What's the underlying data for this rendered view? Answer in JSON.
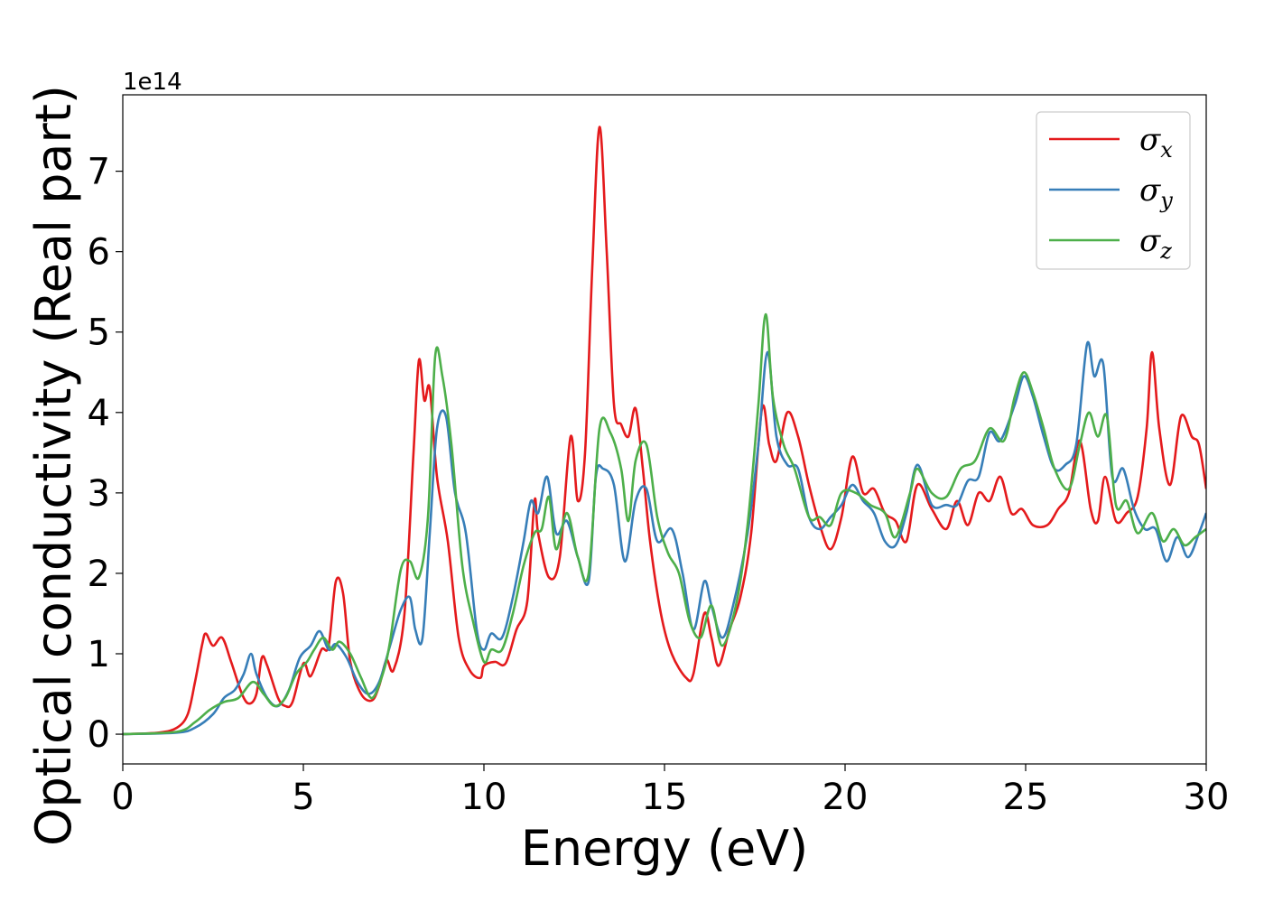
{
  "chart_data": {
    "type": "line",
    "title": "",
    "xlabel": "Energy (eV)",
    "ylabel": "Optical conductivity (Real part)",
    "y_offset_label": "1e14",
    "xlim": [
      0,
      30
    ],
    "ylim": [
      -0.37,
      7.95
    ],
    "xticks": [
      0,
      5,
      10,
      15,
      20,
      25,
      30
    ],
    "yticks": [
      0,
      1,
      2,
      3,
      4,
      5,
      6,
      7
    ],
    "grid": false,
    "legend_position": "top-right",
    "series": [
      {
        "name_symbol": "σ",
        "name_subscript": "x",
        "color": "#e41a1c",
        "points": [
          [
            0,
            0
          ],
          [
            1,
            0.02
          ],
          [
            1.5,
            0.08
          ],
          [
            1.8,
            0.25
          ],
          [
            2.0,
            0.65
          ],
          [
            2.2,
            1.12
          ],
          [
            2.3,
            1.25
          ],
          [
            2.5,
            1.1
          ],
          [
            2.75,
            1.2
          ],
          [
            3.0,
            0.9
          ],
          [
            3.3,
            0.5
          ],
          [
            3.5,
            0.38
          ],
          [
            3.7,
            0.5
          ],
          [
            3.85,
            0.95
          ],
          [
            4.0,
            0.85
          ],
          [
            4.3,
            0.45
          ],
          [
            4.5,
            0.35
          ],
          [
            4.7,
            0.4
          ],
          [
            5.0,
            0.88
          ],
          [
            5.2,
            0.72
          ],
          [
            5.5,
            1.05
          ],
          [
            5.7,
            1.1
          ],
          [
            5.9,
            1.9
          ],
          [
            6.1,
            1.75
          ],
          [
            6.3,
            0.9
          ],
          [
            6.6,
            0.5
          ],
          [
            6.9,
            0.42
          ],
          [
            7.1,
            0.6
          ],
          [
            7.3,
            0.92
          ],
          [
            7.5,
            0.8
          ],
          [
            7.8,
            1.5
          ],
          [
            8.05,
            3.5
          ],
          [
            8.2,
            4.65
          ],
          [
            8.35,
            4.15
          ],
          [
            8.5,
            4.3
          ],
          [
            8.7,
            3.2
          ],
          [
            9.0,
            2.4
          ],
          [
            9.3,
            1.2
          ],
          [
            9.6,
            0.8
          ],
          [
            9.9,
            0.7
          ],
          [
            10.0,
            0.85
          ],
          [
            10.3,
            0.9
          ],
          [
            10.6,
            0.88
          ],
          [
            10.9,
            1.3
          ],
          [
            11.2,
            1.65
          ],
          [
            11.4,
            2.9
          ],
          [
            11.5,
            2.5
          ],
          [
            11.8,
            1.95
          ],
          [
            12.1,
            2.2
          ],
          [
            12.4,
            3.7
          ],
          [
            12.6,
            2.9
          ],
          [
            12.8,
            3.5
          ],
          [
            13.0,
            5.8
          ],
          [
            13.2,
            7.55
          ],
          [
            13.4,
            6.0
          ],
          [
            13.6,
            4.1
          ],
          [
            13.8,
            3.85
          ],
          [
            14.0,
            3.7
          ],
          [
            14.2,
            4.05
          ],
          [
            14.4,
            3.3
          ],
          [
            14.6,
            2.4
          ],
          [
            14.9,
            1.5
          ],
          [
            15.2,
            1.0
          ],
          [
            15.6,
            0.7
          ],
          [
            15.8,
            0.75
          ],
          [
            16.1,
            1.5
          ],
          [
            16.3,
            1.2
          ],
          [
            16.5,
            0.85
          ],
          [
            16.8,
            1.3
          ],
          [
            17.1,
            1.7
          ],
          [
            17.4,
            2.5
          ],
          [
            17.7,
            4.05
          ],
          [
            17.9,
            3.6
          ],
          [
            18.1,
            3.4
          ],
          [
            18.4,
            4.0
          ],
          [
            18.7,
            3.7
          ],
          [
            19.0,
            3.1
          ],
          [
            19.3,
            2.6
          ],
          [
            19.6,
            2.3
          ],
          [
            19.9,
            2.7
          ],
          [
            20.2,
            3.45
          ],
          [
            20.5,
            3.0
          ],
          [
            20.8,
            3.05
          ],
          [
            21.1,
            2.75
          ],
          [
            21.4,
            2.65
          ],
          [
            21.7,
            2.4
          ],
          [
            22.0,
            3.1
          ],
          [
            22.4,
            2.8
          ],
          [
            22.8,
            2.55
          ],
          [
            23.1,
            2.9
          ],
          [
            23.4,
            2.6
          ],
          [
            23.7,
            3.0
          ],
          [
            24.0,
            2.9
          ],
          [
            24.3,
            3.2
          ],
          [
            24.6,
            2.75
          ],
          [
            24.9,
            2.8
          ],
          [
            25.2,
            2.6
          ],
          [
            25.6,
            2.6
          ],
          [
            25.9,
            2.8
          ],
          [
            26.2,
            3.0
          ],
          [
            26.5,
            3.65
          ],
          [
            26.8,
            2.8
          ],
          [
            27.0,
            2.65
          ],
          [
            27.2,
            3.2
          ],
          [
            27.5,
            2.65
          ],
          [
            27.8,
            2.75
          ],
          [
            28.1,
            2.95
          ],
          [
            28.35,
            3.8
          ],
          [
            28.5,
            4.75
          ],
          [
            28.7,
            3.8
          ],
          [
            29.0,
            3.1
          ],
          [
            29.3,
            3.95
          ],
          [
            29.6,
            3.7
          ],
          [
            29.8,
            3.6
          ],
          [
            30.0,
            3.05
          ]
        ]
      },
      {
        "name_symbol": "σ",
        "name_subscript": "y",
        "color": "#377eb8",
        "points": [
          [
            0,
            0
          ],
          [
            1.5,
            0.02
          ],
          [
            2.0,
            0.08
          ],
          [
            2.5,
            0.25
          ],
          [
            2.8,
            0.45
          ],
          [
            3.1,
            0.55
          ],
          [
            3.35,
            0.75
          ],
          [
            3.55,
            1.0
          ],
          [
            3.7,
            0.75
          ],
          [
            4.0,
            0.45
          ],
          [
            4.3,
            0.35
          ],
          [
            4.6,
            0.55
          ],
          [
            4.9,
            0.95
          ],
          [
            5.2,
            1.1
          ],
          [
            5.45,
            1.28
          ],
          [
            5.7,
            1.05
          ],
          [
            5.9,
            1.12
          ],
          [
            6.2,
            0.95
          ],
          [
            6.5,
            0.65
          ],
          [
            6.8,
            0.5
          ],
          [
            7.1,
            0.65
          ],
          [
            7.4,
            1.1
          ],
          [
            7.7,
            1.55
          ],
          [
            7.95,
            1.7
          ],
          [
            8.1,
            1.3
          ],
          [
            8.3,
            1.2
          ],
          [
            8.5,
            2.5
          ],
          [
            8.7,
            3.8
          ],
          [
            8.95,
            3.95
          ],
          [
            9.2,
            3.0
          ],
          [
            9.5,
            2.5
          ],
          [
            9.8,
            1.3
          ],
          [
            10.0,
            1.05
          ],
          [
            10.2,
            1.25
          ],
          [
            10.5,
            1.2
          ],
          [
            10.8,
            1.7
          ],
          [
            11.1,
            2.4
          ],
          [
            11.3,
            2.9
          ],
          [
            11.5,
            2.75
          ],
          [
            11.75,
            3.2
          ],
          [
            12.0,
            2.5
          ],
          [
            12.3,
            2.65
          ],
          [
            12.6,
            2.2
          ],
          [
            12.9,
            1.9
          ],
          [
            13.1,
            3.2
          ],
          [
            13.3,
            3.3
          ],
          [
            13.6,
            3.1
          ],
          [
            13.9,
            2.15
          ],
          [
            14.2,
            2.9
          ],
          [
            14.5,
            3.05
          ],
          [
            14.8,
            2.4
          ],
          [
            15.2,
            2.55
          ],
          [
            15.5,
            2.0
          ],
          [
            15.8,
            1.3
          ],
          [
            16.1,
            1.9
          ],
          [
            16.3,
            1.6
          ],
          [
            16.6,
            1.2
          ],
          [
            16.9,
            1.6
          ],
          [
            17.3,
            2.5
          ],
          [
            17.6,
            3.6
          ],
          [
            17.85,
            4.75
          ],
          [
            18.1,
            3.7
          ],
          [
            18.4,
            3.35
          ],
          [
            18.7,
            3.3
          ],
          [
            19.0,
            2.7
          ],
          [
            19.3,
            2.55
          ],
          [
            19.6,
            2.7
          ],
          [
            19.9,
            2.85
          ],
          [
            20.2,
            3.1
          ],
          [
            20.5,
            2.9
          ],
          [
            20.8,
            2.75
          ],
          [
            21.1,
            2.4
          ],
          [
            21.4,
            2.35
          ],
          [
            21.7,
            2.75
          ],
          [
            22.0,
            3.35
          ],
          [
            22.4,
            2.85
          ],
          [
            22.8,
            2.85
          ],
          [
            23.1,
            2.85
          ],
          [
            23.4,
            3.15
          ],
          [
            23.7,
            3.2
          ],
          [
            24.0,
            3.75
          ],
          [
            24.3,
            3.65
          ],
          [
            24.7,
            4.1
          ],
          [
            24.95,
            4.45
          ],
          [
            25.2,
            4.2
          ],
          [
            25.5,
            3.7
          ],
          [
            25.8,
            3.3
          ],
          [
            26.1,
            3.35
          ],
          [
            26.4,
            3.6
          ],
          [
            26.7,
            4.85
          ],
          [
            26.9,
            4.45
          ],
          [
            27.15,
            4.6
          ],
          [
            27.4,
            3.2
          ],
          [
            27.7,
            3.3
          ],
          [
            28.0,
            2.8
          ],
          [
            28.3,
            2.55
          ],
          [
            28.6,
            2.55
          ],
          [
            28.9,
            2.15
          ],
          [
            29.2,
            2.45
          ],
          [
            29.5,
            2.2
          ],
          [
            29.8,
            2.5
          ],
          [
            30.0,
            2.75
          ]
        ]
      },
      {
        "name_symbol": "σ",
        "name_subscript": "z",
        "color": "#4daf4a",
        "points": [
          [
            0,
            0
          ],
          [
            1.5,
            0.03
          ],
          [
            2.0,
            0.15
          ],
          [
            2.4,
            0.3
          ],
          [
            2.8,
            0.4
          ],
          [
            3.2,
            0.45
          ],
          [
            3.6,
            0.65
          ],
          [
            3.9,
            0.5
          ],
          [
            4.2,
            0.35
          ],
          [
            4.5,
            0.45
          ],
          [
            4.8,
            0.75
          ],
          [
            5.1,
            0.9
          ],
          [
            5.3,
            1.05
          ],
          [
            5.55,
            1.2
          ],
          [
            5.8,
            1.05
          ],
          [
            6.0,
            1.15
          ],
          [
            6.3,
            1.0
          ],
          [
            6.6,
            0.7
          ],
          [
            6.9,
            0.45
          ],
          [
            7.2,
            0.75
          ],
          [
            7.4,
            1.15
          ],
          [
            7.7,
            2.05
          ],
          [
            7.95,
            2.15
          ],
          [
            8.2,
            1.95
          ],
          [
            8.45,
            2.7
          ],
          [
            8.65,
            4.7
          ],
          [
            8.85,
            4.45
          ],
          [
            9.1,
            3.6
          ],
          [
            9.4,
            2.1
          ],
          [
            9.7,
            1.4
          ],
          [
            10.0,
            0.9
          ],
          [
            10.2,
            1.05
          ],
          [
            10.5,
            1.05
          ],
          [
            10.8,
            1.5
          ],
          [
            11.1,
            2.1
          ],
          [
            11.4,
            2.5
          ],
          [
            11.6,
            2.55
          ],
          [
            11.8,
            2.95
          ],
          [
            12.0,
            2.3
          ],
          [
            12.3,
            2.75
          ],
          [
            12.6,
            2.2
          ],
          [
            12.9,
            2.0
          ],
          [
            13.2,
            3.8
          ],
          [
            13.5,
            3.75
          ],
          [
            13.8,
            3.3
          ],
          [
            14.0,
            2.65
          ],
          [
            14.2,
            3.4
          ],
          [
            14.5,
            3.6
          ],
          [
            14.8,
            2.7
          ],
          [
            15.1,
            2.25
          ],
          [
            15.4,
            2.0
          ],
          [
            15.7,
            1.4
          ],
          [
            16.0,
            1.2
          ],
          [
            16.3,
            1.6
          ],
          [
            16.6,
            1.1
          ],
          [
            17.0,
            1.65
          ],
          [
            17.3,
            2.6
          ],
          [
            17.6,
            4.1
          ],
          [
            17.8,
            5.22
          ],
          [
            18.0,
            4.2
          ],
          [
            18.3,
            3.6
          ],
          [
            18.6,
            3.3
          ],
          [
            19.0,
            2.7
          ],
          [
            19.3,
            2.7
          ],
          [
            19.6,
            2.6
          ],
          [
            19.9,
            3.0
          ],
          [
            20.3,
            3.0
          ],
          [
            20.7,
            2.85
          ],
          [
            21.1,
            2.75
          ],
          [
            21.4,
            2.45
          ],
          [
            21.8,
            3.0
          ],
          [
            22.0,
            3.3
          ],
          [
            22.4,
            3.0
          ],
          [
            22.8,
            2.95
          ],
          [
            23.2,
            3.3
          ],
          [
            23.6,
            3.4
          ],
          [
            24.0,
            3.8
          ],
          [
            24.4,
            3.65
          ],
          [
            24.7,
            4.2
          ],
          [
            24.95,
            4.5
          ],
          [
            25.2,
            4.25
          ],
          [
            25.5,
            3.8
          ],
          [
            25.8,
            3.3
          ],
          [
            26.2,
            3.05
          ],
          [
            26.5,
            3.6
          ],
          [
            26.75,
            4.0
          ],
          [
            27.0,
            3.7
          ],
          [
            27.25,
            3.95
          ],
          [
            27.5,
            2.85
          ],
          [
            27.8,
            2.9
          ],
          [
            28.1,
            2.5
          ],
          [
            28.5,
            2.75
          ],
          [
            28.8,
            2.4
          ],
          [
            29.1,
            2.55
          ],
          [
            29.4,
            2.35
          ],
          [
            29.7,
            2.45
          ],
          [
            30.0,
            2.55
          ]
        ]
      }
    ]
  }
}
